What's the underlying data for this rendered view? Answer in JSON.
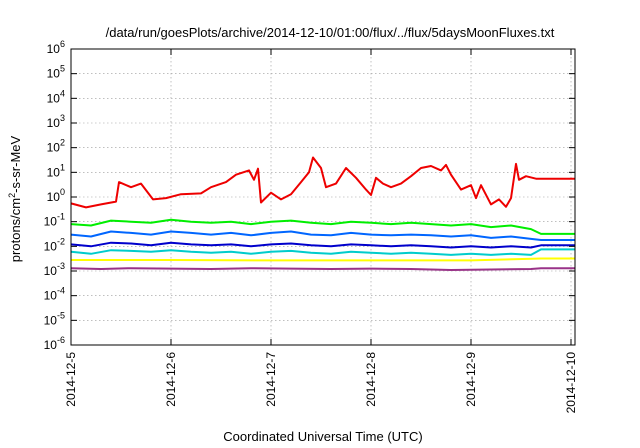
{
  "chart_data": {
    "type": "line",
    "title": "/data/run/goesPlots/archive/2014-12-10/01:00/flux/../flux/5daysMoonFluxes.txt",
    "xlabel": "Coordinated Universal Time (UTC)",
    "ylabel": "protons/cm²-s-sr-MeV",
    "yscale": "log",
    "ylim": [
      1e-06,
      1000000.0
    ],
    "xlim": [
      0,
      5.04
    ],
    "grid": true,
    "x_ticks": [
      {
        "value": 0,
        "label": "2014-12-5"
      },
      {
        "value": 1,
        "label": "2014-12-6"
      },
      {
        "value": 2,
        "label": "2014-12-7"
      },
      {
        "value": 3,
        "label": "2014-12-8"
      },
      {
        "value": 4,
        "label": "2014-12-9"
      },
      {
        "value": 5,
        "label": "2014-12-10"
      }
    ],
    "y_ticks": [
      {
        "value": 1e-06,
        "base": "10",
        "exp": "-6"
      },
      {
        "value": 1e-05,
        "base": "10",
        "exp": "-5"
      },
      {
        "value": 0.0001,
        "base": "10",
        "exp": "-4"
      },
      {
        "value": 0.001,
        "base": "10",
        "exp": "-3"
      },
      {
        "value": 0.01,
        "base": "10",
        "exp": "-2"
      },
      {
        "value": 0.1,
        "base": "10",
        "exp": "-1"
      },
      {
        "value": 1,
        "base": "10",
        "exp": "0"
      },
      {
        "value": 10,
        "base": "10",
        "exp": "1"
      },
      {
        "value": 100,
        "base": "10",
        "exp": "2"
      },
      {
        "value": 1000,
        "base": "10",
        "exp": "3"
      },
      {
        "value": 10000,
        "base": "10",
        "exp": "4"
      },
      {
        "value": 100000,
        "base": "10",
        "exp": "5"
      },
      {
        "value": 1000000,
        "base": "10",
        "exp": "6"
      }
    ],
    "series": [
      {
        "color": "#ee0000",
        "points": [
          [
            0,
            0.55
          ],
          [
            0.15,
            0.38
          ],
          [
            0.3,
            0.5
          ],
          [
            0.45,
            0.65
          ],
          [
            0.48,
            4
          ],
          [
            0.6,
            2.5
          ],
          [
            0.7,
            3.5
          ],
          [
            0.82,
            0.8
          ],
          [
            0.95,
            0.9
          ],
          [
            1.1,
            1.3
          ],
          [
            1.3,
            1.4
          ],
          [
            1.4,
            2.5
          ],
          [
            1.55,
            4
          ],
          [
            1.65,
            8
          ],
          [
            1.78,
            12
          ],
          [
            1.83,
            5
          ],
          [
            1.87,
            14
          ],
          [
            1.9,
            0.6
          ],
          [
            2.0,
            1.5
          ],
          [
            2.1,
            0.8
          ],
          [
            2.2,
            1.3
          ],
          [
            2.3,
            4
          ],
          [
            2.38,
            10
          ],
          [
            2.42,
            40
          ],
          [
            2.5,
            15
          ],
          [
            2.55,
            2.5
          ],
          [
            2.65,
            3.5
          ],
          [
            2.75,
            15
          ],
          [
            2.85,
            6
          ],
          [
            2.95,
            2
          ],
          [
            3.0,
            1.2
          ],
          [
            3.05,
            6
          ],
          [
            3.12,
            3.5
          ],
          [
            3.2,
            2.5
          ],
          [
            3.3,
            3.5
          ],
          [
            3.4,
            7
          ],
          [
            3.5,
            15
          ],
          [
            3.6,
            18
          ],
          [
            3.7,
            12
          ],
          [
            3.75,
            20
          ],
          [
            3.8,
            8
          ],
          [
            3.9,
            2
          ],
          [
            4.0,
            3
          ],
          [
            4.05,
            0.9
          ],
          [
            4.1,
            3
          ],
          [
            4.2,
            0.5
          ],
          [
            4.28,
            0.8
          ],
          [
            4.35,
            0.4
          ],
          [
            4.4,
            0.9
          ],
          [
            4.45,
            22
          ],
          [
            4.48,
            5
          ],
          [
            4.55,
            7
          ],
          [
            4.65,
            5.5
          ],
          [
            4.7,
            5.5
          ],
          [
            5.04,
            5.5
          ]
        ]
      },
      {
        "color": "#00ee00",
        "points": [
          [
            0,
            0.08
          ],
          [
            0.2,
            0.07
          ],
          [
            0.4,
            0.11
          ],
          [
            0.6,
            0.1
          ],
          [
            0.8,
            0.09
          ],
          [
            1.0,
            0.12
          ],
          [
            1.2,
            0.1
          ],
          [
            1.4,
            0.09
          ],
          [
            1.6,
            0.1
          ],
          [
            1.8,
            0.08
          ],
          [
            2.0,
            0.1
          ],
          [
            2.2,
            0.11
          ],
          [
            2.4,
            0.09
          ],
          [
            2.6,
            0.08
          ],
          [
            2.8,
            0.1
          ],
          [
            3.0,
            0.09
          ],
          [
            3.2,
            0.08
          ],
          [
            3.4,
            0.09
          ],
          [
            3.6,
            0.08
          ],
          [
            3.8,
            0.07
          ],
          [
            4.0,
            0.08
          ],
          [
            4.2,
            0.06
          ],
          [
            4.4,
            0.07
          ],
          [
            4.6,
            0.05
          ],
          [
            4.7,
            0.032
          ],
          [
            5.04,
            0.032
          ]
        ]
      },
      {
        "color": "#0066ff",
        "points": [
          [
            0,
            0.03
          ],
          [
            0.2,
            0.025
          ],
          [
            0.4,
            0.04
          ],
          [
            0.6,
            0.035
          ],
          [
            0.8,
            0.03
          ],
          [
            1.0,
            0.04
          ],
          [
            1.2,
            0.035
          ],
          [
            1.4,
            0.03
          ],
          [
            1.6,
            0.035
          ],
          [
            1.8,
            0.028
          ],
          [
            2.0,
            0.035
          ],
          [
            2.2,
            0.04
          ],
          [
            2.4,
            0.03
          ],
          [
            2.6,
            0.028
          ],
          [
            2.8,
            0.035
          ],
          [
            3.0,
            0.03
          ],
          [
            3.2,
            0.028
          ],
          [
            3.4,
            0.03
          ],
          [
            3.6,
            0.028
          ],
          [
            3.8,
            0.025
          ],
          [
            4.0,
            0.028
          ],
          [
            4.2,
            0.022
          ],
          [
            4.4,
            0.025
          ],
          [
            4.6,
            0.02
          ],
          [
            4.7,
            0.018
          ],
          [
            5.04,
            0.018
          ]
        ]
      },
      {
        "color": "#0000cc",
        "points": [
          [
            0,
            0.012
          ],
          [
            0.2,
            0.01
          ],
          [
            0.4,
            0.014
          ],
          [
            0.6,
            0.013
          ],
          [
            0.8,
            0.011
          ],
          [
            1.0,
            0.014
          ],
          [
            1.2,
            0.012
          ],
          [
            1.4,
            0.011
          ],
          [
            1.6,
            0.012
          ],
          [
            1.8,
            0.01
          ],
          [
            2.0,
            0.012
          ],
          [
            2.2,
            0.013
          ],
          [
            2.4,
            0.011
          ],
          [
            2.6,
            0.01
          ],
          [
            2.8,
            0.012
          ],
          [
            3.0,
            0.011
          ],
          [
            3.2,
            0.01
          ],
          [
            3.4,
            0.011
          ],
          [
            3.6,
            0.01
          ],
          [
            3.8,
            0.009
          ],
          [
            4.0,
            0.01
          ],
          [
            4.2,
            0.009
          ],
          [
            4.4,
            0.01
          ],
          [
            4.6,
            0.009
          ],
          [
            4.7,
            0.011
          ],
          [
            5.04,
            0.011
          ]
        ]
      },
      {
        "color": "#00cccc",
        "points": [
          [
            0,
            0.006
          ],
          [
            0.2,
            0.005
          ],
          [
            0.4,
            0.007
          ],
          [
            0.6,
            0.0065
          ],
          [
            0.8,
            0.006
          ],
          [
            1.0,
            0.007
          ],
          [
            1.2,
            0.006
          ],
          [
            1.4,
            0.0055
          ],
          [
            1.6,
            0.006
          ],
          [
            1.8,
            0.005
          ],
          [
            2.0,
            0.006
          ],
          [
            2.2,
            0.0065
          ],
          [
            2.4,
            0.0055
          ],
          [
            2.6,
            0.005
          ],
          [
            2.8,
            0.006
          ],
          [
            3.0,
            0.0055
          ],
          [
            3.2,
            0.005
          ],
          [
            3.4,
            0.0055
          ],
          [
            3.6,
            0.005
          ],
          [
            3.8,
            0.0045
          ],
          [
            4.0,
            0.005
          ],
          [
            4.2,
            0.0045
          ],
          [
            4.4,
            0.005
          ],
          [
            4.6,
            0.0045
          ],
          [
            4.7,
            0.0075
          ],
          [
            5.04,
            0.0075
          ]
        ]
      },
      {
        "color": "#ffff00",
        "points": [
          [
            0,
            0.0028
          ],
          [
            1.0,
            0.0028
          ],
          [
            2.0,
            0.0027
          ],
          [
            3.0,
            0.0027
          ],
          [
            4.0,
            0.0027
          ],
          [
            4.7,
            0.0032
          ],
          [
            5.04,
            0.0032
          ]
        ]
      },
      {
        "color": "#993388",
        "points": [
          [
            0,
            0.0013
          ],
          [
            0.3,
            0.0012
          ],
          [
            0.6,
            0.0013
          ],
          [
            1.0,
            0.00125
          ],
          [
            1.4,
            0.0012
          ],
          [
            1.8,
            0.0013
          ],
          [
            2.2,
            0.00125
          ],
          [
            2.6,
            0.0012
          ],
          [
            3.0,
            0.00125
          ],
          [
            3.4,
            0.0012
          ],
          [
            3.8,
            0.0011
          ],
          [
            4.2,
            0.00115
          ],
          [
            4.6,
            0.0012
          ],
          [
            4.7,
            0.0013
          ],
          [
            5.04,
            0.0013
          ]
        ]
      }
    ]
  }
}
